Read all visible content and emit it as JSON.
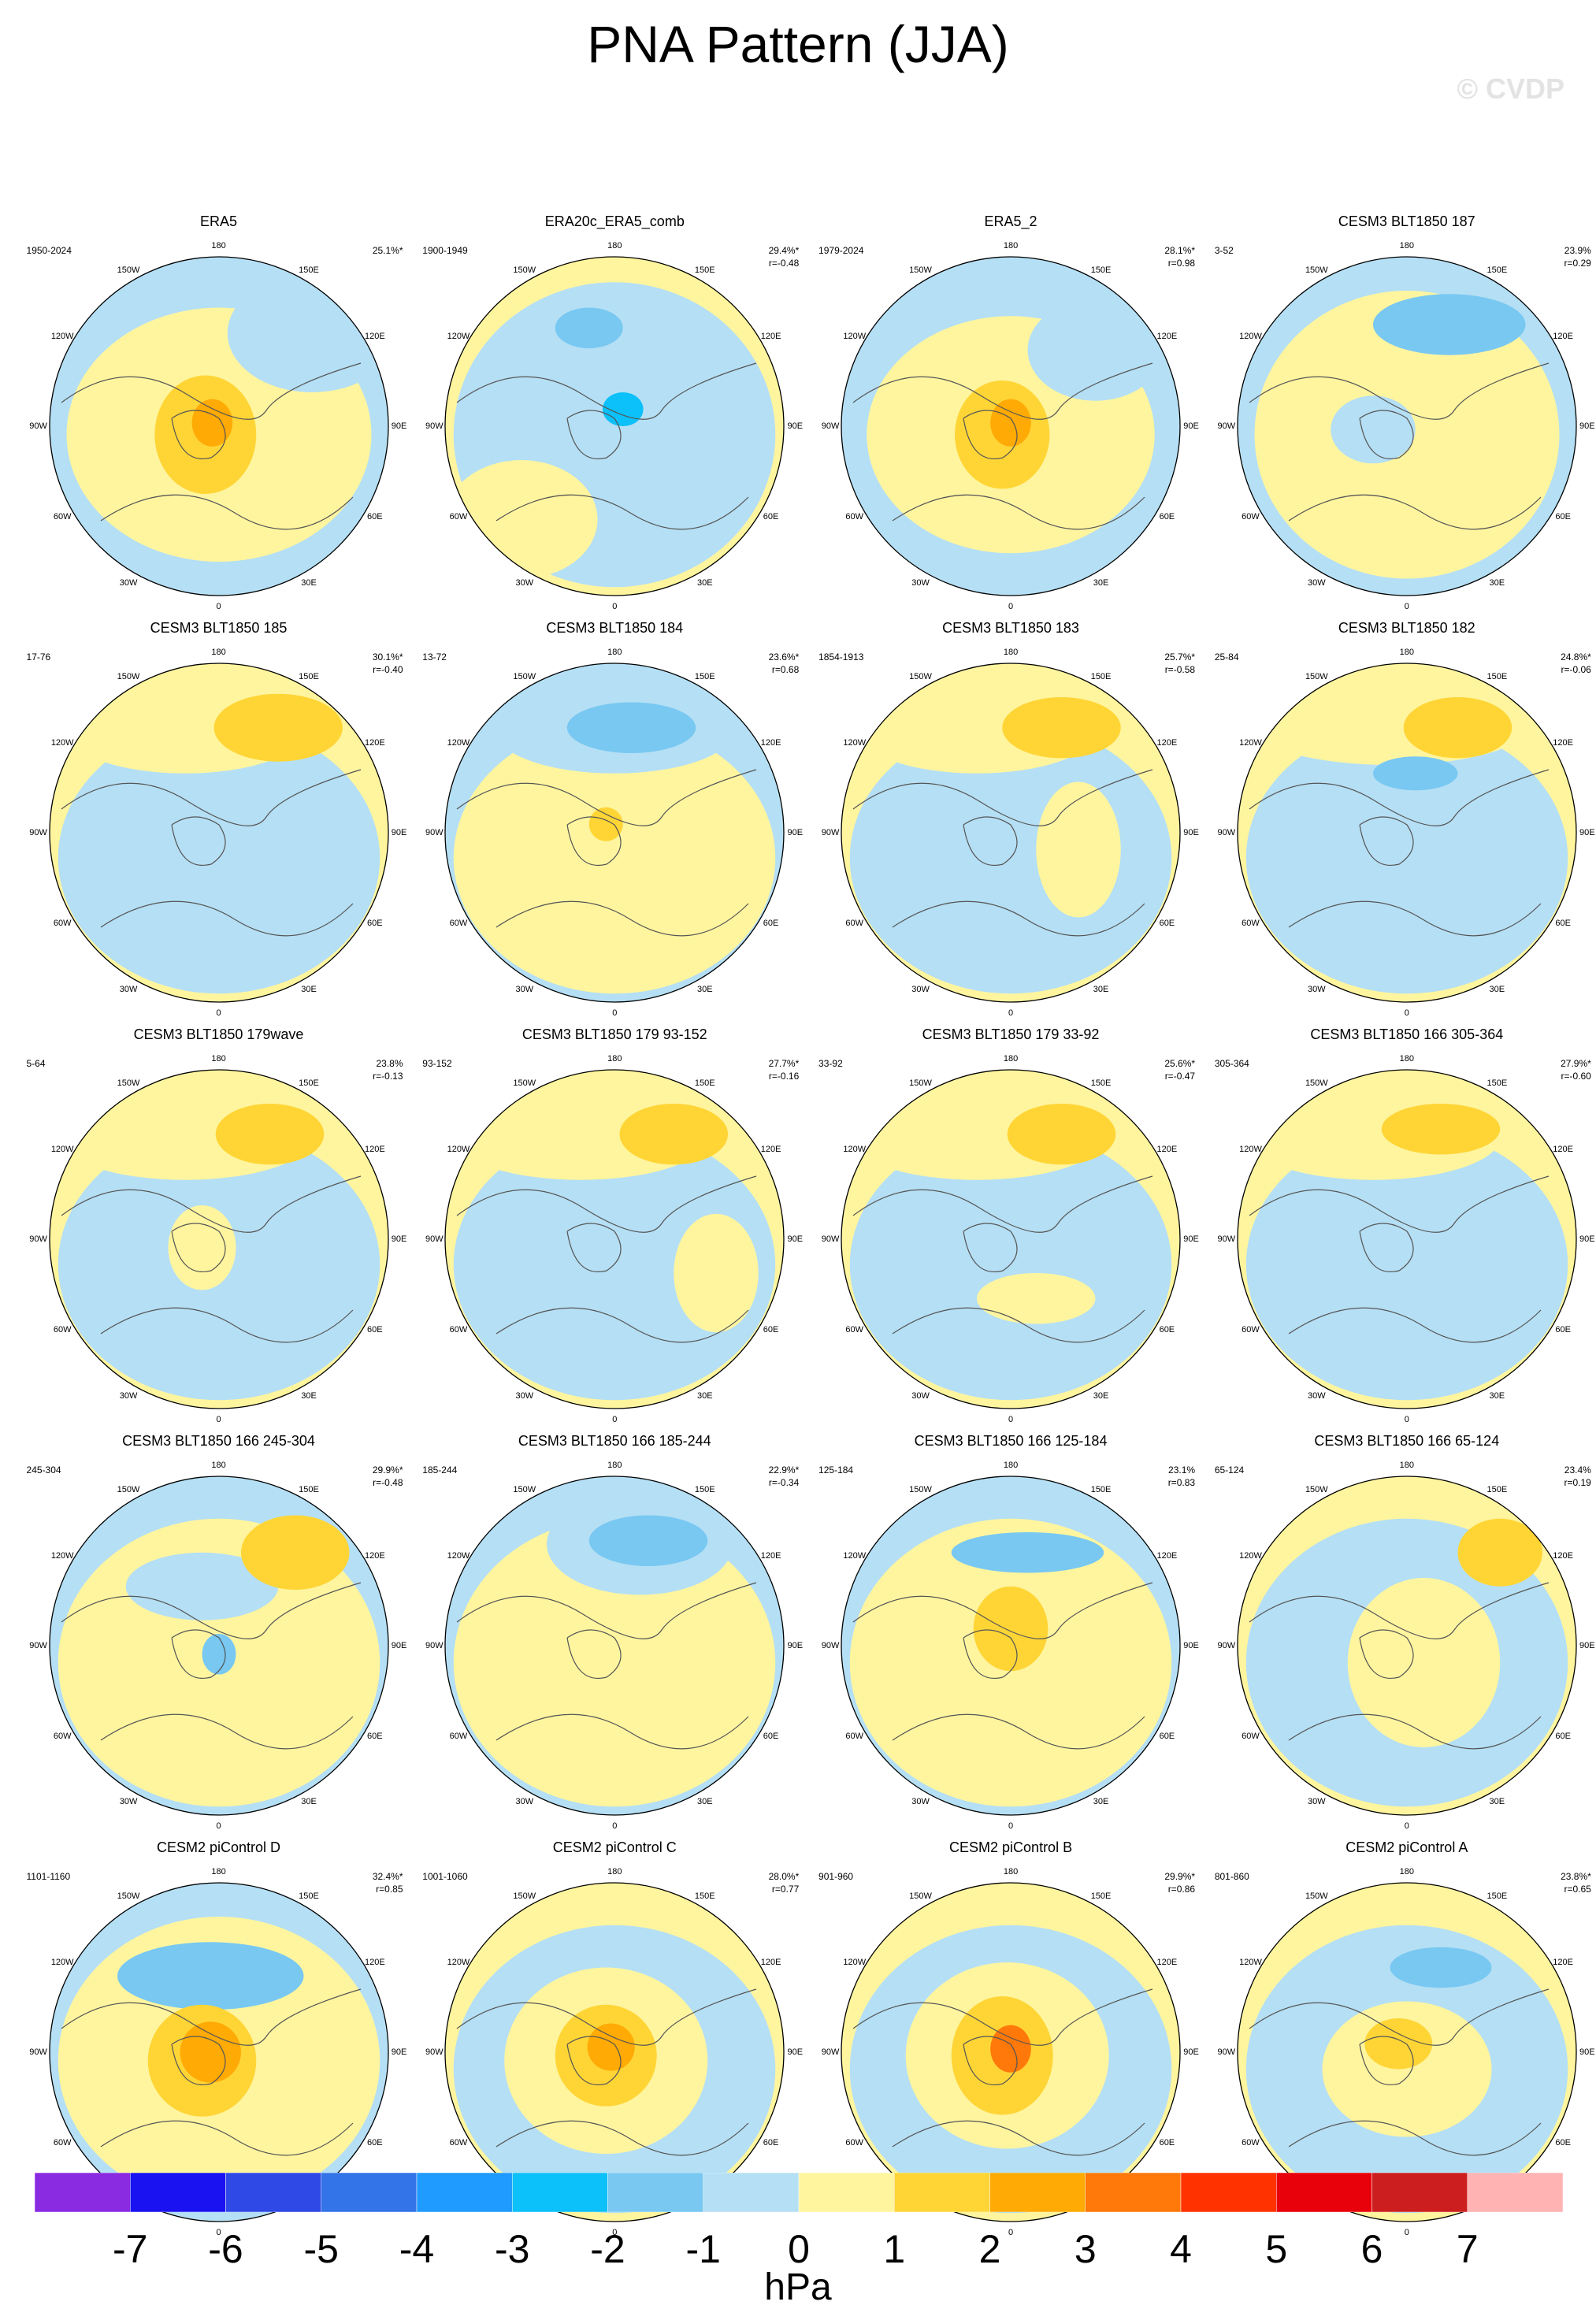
{
  "title": "PNA Pattern (JJA)",
  "watermark": "© CVDP",
  "units": "hPa",
  "lon_labels": [
    "180",
    "150E",
    "120E",
    "90E",
    "60E",
    "30E",
    "0",
    "30W",
    "60W",
    "90W",
    "120W",
    "150W"
  ],
  "colorbar": {
    "labels": [
      "-7",
      "-6",
      "-5",
      "-4",
      "-3",
      "-2",
      "-1",
      "0",
      "1",
      "2",
      "3",
      "4",
      "5",
      "6",
      "7"
    ],
    "colors": [
      "#8a2be2",
      "#1a12f0",
      "#2f49e6",
      "#3374e8",
      "#1f9bff",
      "#0cc0f9",
      "#78c8f2",
      "#b5dff4",
      "#fff59f",
      "#ffd536",
      "#ffaa05",
      "#ff780a",
      "#ff3200",
      "#e8000a",
      "#cc1e1e",
      "#ffb3b3"
    ]
  },
  "colors": {
    "ocean_neg": "#b5dff4",
    "pos_land": "#fff59f",
    "coast": "#555555"
  },
  "panels": [
    {
      "title": "ERA5",
      "years": "1950-2024",
      "pct": "25.1%*",
      "r": ""
    },
    {
      "title": "ERA20c_ERA5_comb",
      "years": "1900-1949",
      "pct": "29.4%*",
      "r": "r=-0.48"
    },
    {
      "title": "ERA5_2",
      "years": "1979-2024",
      "pct": "28.1%*",
      "r": "r=0.98"
    },
    {
      "title": "CESM3 BLT1850 187",
      "years": "3-52",
      "pct": "23.9%",
      "r": "r=0.29"
    },
    {
      "title": "CESM3 BLT1850 185",
      "years": "17-76",
      "pct": "30.1%*",
      "r": "r=-0.40"
    },
    {
      "title": "CESM3 BLT1850 184",
      "years": "13-72",
      "pct": "23.6%*",
      "r": "r=0.68"
    },
    {
      "title": "CESM3 BLT1850 183",
      "years": "1854-1913",
      "pct": "25.7%*",
      "r": "r=-0.58"
    },
    {
      "title": "CESM3 BLT1850 182",
      "years": "25-84",
      "pct": "24.8%*",
      "r": "r=-0.06"
    },
    {
      "title": "CESM3 BLT1850 179wave",
      "years": "5-64",
      "pct": "23.8%",
      "r": "r=-0.13"
    },
    {
      "title": "CESM3 BLT1850 179 93-152",
      "years": "93-152",
      "pct": "27.7%*",
      "r": "r=-0.16"
    },
    {
      "title": "CESM3 BLT1850 179 33-92",
      "years": "33-92",
      "pct": "25.6%*",
      "r": "r=-0.47"
    },
    {
      "title": "CESM3 BLT1850 166 305-364",
      "years": "305-364",
      "pct": "27.9%*",
      "r": "r=-0.60"
    },
    {
      "title": "CESM3 BLT1850 166 245-304",
      "years": "245-304",
      "pct": "29.9%*",
      "r": "r=-0.48"
    },
    {
      "title": "CESM3 BLT1850 166 185-244",
      "years": "185-244",
      "pct": "22.9%*",
      "r": "r=-0.34"
    },
    {
      "title": "CESM3 BLT1850 166 125-184",
      "years": "125-184",
      "pct": "23.1%",
      "r": "r=0.83"
    },
    {
      "title": "CESM3 BLT1850 166 65-124",
      "years": "65-124",
      "pct": "23.4%",
      "r": "r=0.19"
    },
    {
      "title": "CESM2 piControl D",
      "years": "1101-1160",
      "pct": "32.4%*",
      "r": "r=0.85"
    },
    {
      "title": "CESM2 piControl C",
      "years": "1001-1060",
      "pct": "28.0%*",
      "r": "r=0.77"
    },
    {
      "title": "CESM2 piControl B",
      "years": "901-960",
      "pct": "29.9%*",
      "r": "r=0.86"
    },
    {
      "title": "CESM2 piControl A",
      "years": "801-860",
      "pct": "23.8%*",
      "r": "r=0.65"
    }
  ]
}
